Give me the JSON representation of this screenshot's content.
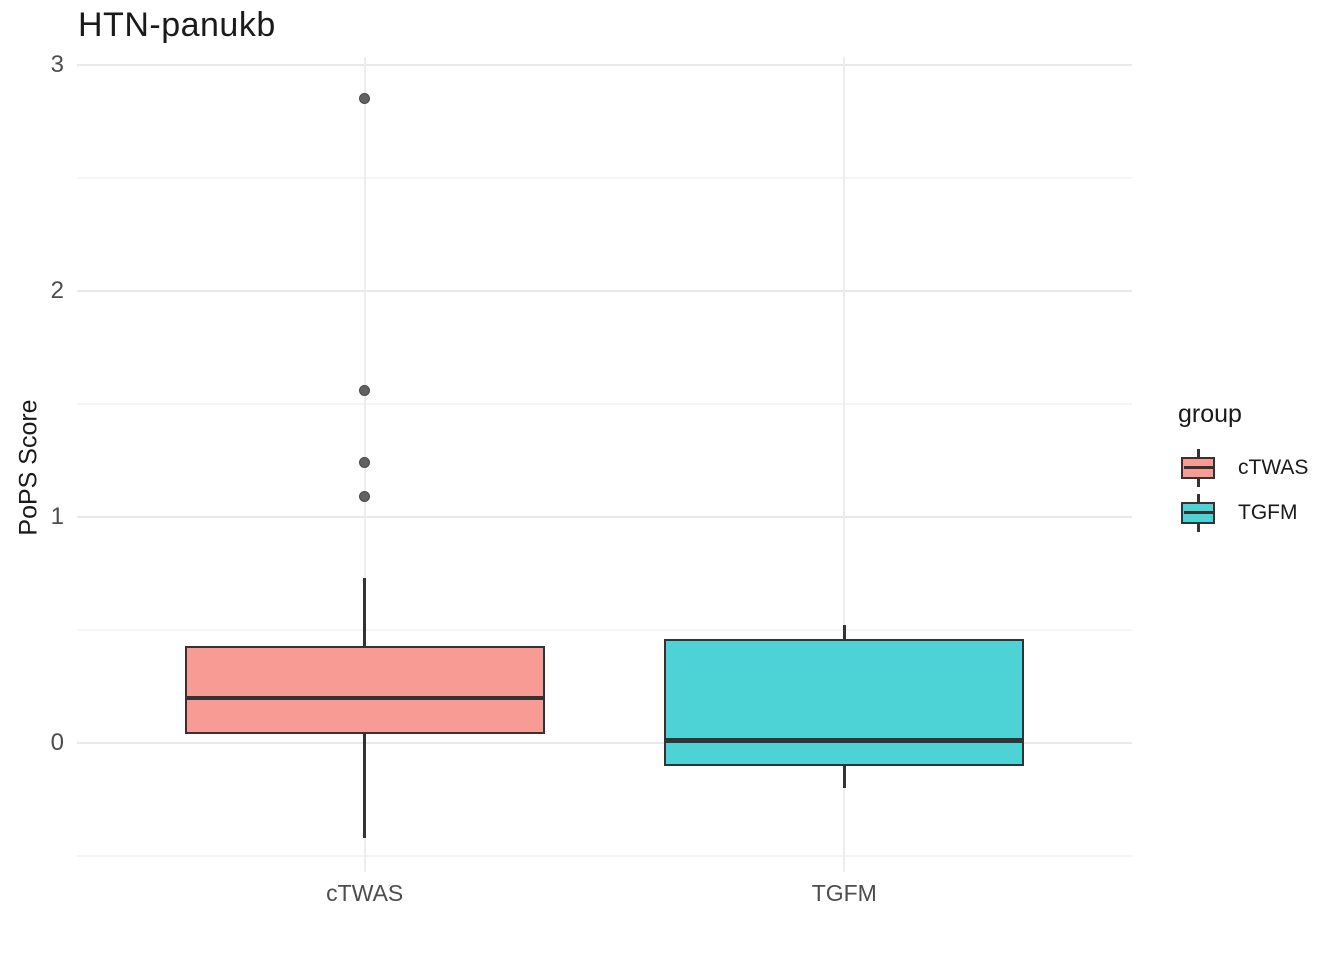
{
  "chart_data": {
    "type": "boxplot",
    "title": "HTN-panukb",
    "xlabel": "",
    "ylabel": "PoPS Score",
    "categories": [
      "cTWAS",
      "TGFM"
    ],
    "y_ticks": [
      0,
      1,
      2,
      3
    ],
    "y_minor_ticks": [
      -0.5,
      0.5,
      1.5,
      2.5
    ],
    "ylim": [
      -0.57,
      3.04
    ],
    "grid": "horizontal major+minor light gray, vertical major at categories, white background",
    "legend": {
      "title": "group",
      "position": "right",
      "entries": [
        {
          "label": "cTWAS",
          "color": "#F99B95"
        },
        {
          "label": "TGFM",
          "color": "#4DD2D6"
        }
      ]
    },
    "series": [
      {
        "name": "cTWAS",
        "fill": "#F99B95",
        "lower_whisker": -0.42,
        "q1": 0.04,
        "median": 0.2,
        "q3": 0.43,
        "upper_whisker": 0.73,
        "outliers": [
          1.09,
          1.24,
          1.56,
          2.85
        ]
      },
      {
        "name": "TGFM",
        "fill": "#4DD2D6",
        "lower_whisker": -0.2,
        "q1": -0.1,
        "median": 0.01,
        "q3": 0.46,
        "upper_whisker": 0.52,
        "outliers": []
      }
    ],
    "colors": {
      "box_stroke": "#333333",
      "outlier_fill": "#616161",
      "grid_major": "#e9e9e9",
      "grid_minor": "#f5f5f5",
      "tick_label": "#4d4d4d",
      "text": "#1a1a1a",
      "background": "#ffffff"
    }
  }
}
